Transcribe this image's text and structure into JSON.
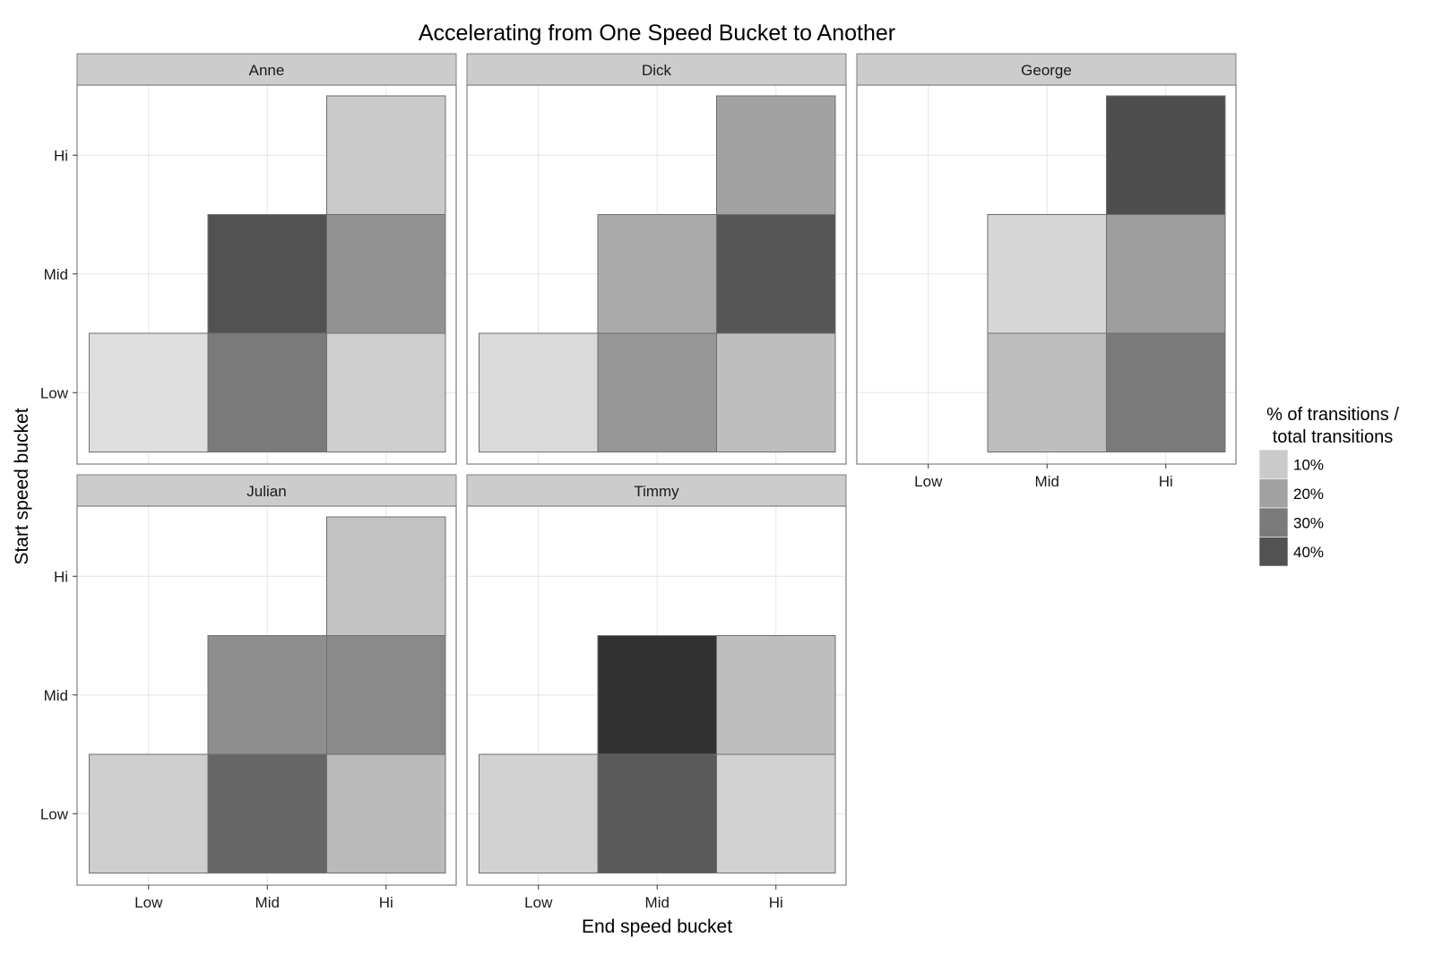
{
  "chart_data": {
    "type": "heatmap",
    "title": "Accelerating from One Speed Bucket to Another",
    "xlabel": "End speed bucket",
    "ylabel": "Start speed bucket",
    "x_categories": [
      "Low",
      "Mid",
      "Hi"
    ],
    "y_categories": [
      "Low",
      "Mid",
      "Hi"
    ],
    "legend": {
      "title_lines": [
        "% of transitions /",
        "total transitions"
      ],
      "position": "right",
      "breaks": [
        {
          "value": 10,
          "label": "10%"
        },
        {
          "value": 20,
          "label": "20%"
        },
        {
          "value": 30,
          "label": "30%"
        },
        {
          "value": 40,
          "label": "40%"
        }
      ]
    },
    "color_scale": {
      "low_value": 0,
      "high_value": 50,
      "low_color": "#f2f2f2",
      "high_color": "#2a2a2a"
    },
    "facets": [
      {
        "name": "Anne",
        "cells": [
          {
            "x": "Low",
            "y": "Low",
            "value": 5
          },
          {
            "x": "Mid",
            "y": "Low",
            "value": 30
          },
          {
            "x": "Hi",
            "y": "Low",
            "value": 9
          },
          {
            "x": "Mid",
            "y": "Mid",
            "value": 40
          },
          {
            "x": "Hi",
            "y": "Mid",
            "value": 24
          },
          {
            "x": "Hi",
            "y": "Hi",
            "value": 10
          }
        ]
      },
      {
        "name": "Dick",
        "cells": [
          {
            "x": "Low",
            "y": "Low",
            "value": 6
          },
          {
            "x": "Mid",
            "y": "Low",
            "value": 23
          },
          {
            "x": "Hi",
            "y": "Low",
            "value": 13
          },
          {
            "x": "Mid",
            "y": "Mid",
            "value": 18
          },
          {
            "x": "Hi",
            "y": "Mid",
            "value": 39
          },
          {
            "x": "Hi",
            "y": "Hi",
            "value": 20
          }
        ]
      },
      {
        "name": "George",
        "cells": [
          {
            "x": "Mid",
            "y": "Low",
            "value": 13
          },
          {
            "x": "Hi",
            "y": "Low",
            "value": 30
          },
          {
            "x": "Mid",
            "y": "Mid",
            "value": 7
          },
          {
            "x": "Hi",
            "y": "Mid",
            "value": 21
          },
          {
            "x": "Hi",
            "y": "Hi",
            "value": 41
          }
        ]
      },
      {
        "name": "Julian",
        "cells": [
          {
            "x": "Low",
            "y": "Low",
            "value": 9
          },
          {
            "x": "Mid",
            "y": "Low",
            "value": 35
          },
          {
            "x": "Hi",
            "y": "Low",
            "value": 14
          },
          {
            "x": "Mid",
            "y": "Mid",
            "value": 25
          },
          {
            "x": "Hi",
            "y": "Mid",
            "value": 26
          },
          {
            "x": "Hi",
            "y": "Hi",
            "value": 12
          }
        ]
      },
      {
        "name": "Timmy",
        "cells": [
          {
            "x": "Low",
            "y": "Low",
            "value": 8
          },
          {
            "x": "Mid",
            "y": "Low",
            "value": 38
          },
          {
            "x": "Hi",
            "y": "Low",
            "value": 8
          },
          {
            "x": "Mid",
            "y": "Mid",
            "value": 48
          },
          {
            "x": "Hi",
            "y": "Mid",
            "value": 13
          }
        ]
      }
    ]
  }
}
